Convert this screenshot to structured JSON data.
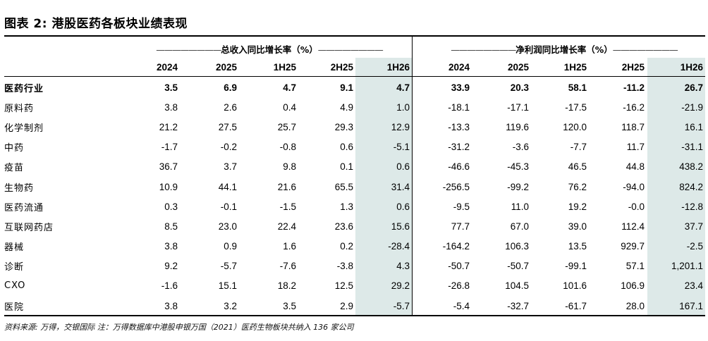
{
  "title": "图表 2: 港股医药各板块业绩表现",
  "colors": {
    "shade": "#dde9e8"
  },
  "groups": {
    "revenue": {
      "label": "总收入同比增长率（%）",
      "dashes": "————————"
    },
    "profit": {
      "label": "净利润同比增长率（%）",
      "dashes": "————————"
    }
  },
  "columns": {
    "revenue": [
      "2024",
      "2025",
      "1H25",
      "2H25",
      "1H26"
    ],
    "profit": [
      "2024",
      "2025",
      "1H25",
      "2H25",
      "1H26"
    ]
  },
  "rows": [
    {
      "name": "医药行业",
      "bold": true,
      "values": [
        "3.5",
        "6.9",
        "4.7",
        "9.1",
        "4.7",
        "33.9",
        "20.3",
        "58.1",
        "-11.2",
        "26.7"
      ]
    },
    {
      "name": "原料药",
      "bold": false,
      "values": [
        "3.8",
        "2.6",
        "0.4",
        "4.9",
        "1.0",
        "-18.1",
        "-17.1",
        "-17.5",
        "-16.2",
        "-21.9"
      ]
    },
    {
      "name": "化学制剂",
      "bold": false,
      "values": [
        "21.2",
        "27.5",
        "25.7",
        "29.3",
        "12.9",
        "-13.3",
        "119.6",
        "120.0",
        "118.7",
        "16.1"
      ]
    },
    {
      "name": "中药",
      "bold": false,
      "values": [
        "-1.7",
        "-0.2",
        "-0.8",
        "0.6",
        "-5.1",
        "-31.2",
        "-3.6",
        "-7.7",
        "11.7",
        "-31.1"
      ]
    },
    {
      "name": "疫苗",
      "bold": false,
      "values": [
        "36.7",
        "3.7",
        "9.8",
        "0.1",
        "0.6",
        "-46.6",
        "-45.3",
        "46.5",
        "44.8",
        "438.2"
      ]
    },
    {
      "name": "生物药",
      "bold": false,
      "values": [
        "10.9",
        "44.1",
        "21.6",
        "65.5",
        "31.4",
        "-256.5",
        "-99.2",
        "76.2",
        "-94.0",
        "824.2"
      ]
    },
    {
      "name": "医药流通",
      "bold": false,
      "values": [
        "0.3",
        "-0.1",
        "-1.5",
        "1.3",
        "0.6",
        "-9.5",
        "11.0",
        "19.2",
        "-0.0",
        "-12.8"
      ]
    },
    {
      "name": "互联网药店",
      "bold": false,
      "values": [
        "8.5",
        "23.0",
        "22.4",
        "23.6",
        "15.6",
        "77.7",
        "67.0",
        "39.0",
        "112.4",
        "37.7"
      ]
    },
    {
      "name": "器械",
      "bold": false,
      "values": [
        "3.8",
        "0.9",
        "1.6",
        "0.2",
        "-28.4",
        "-164.2",
        "106.3",
        "13.5",
        "929.7",
        "-2.5"
      ]
    },
    {
      "name": "诊断",
      "bold": false,
      "values": [
        "9.2",
        "-5.7",
        "-7.6",
        "-3.8",
        "4.3",
        "-50.7",
        "-50.7",
        "-99.1",
        "57.1",
        "1,201.1"
      ]
    },
    {
      "name": "CXO",
      "bold": false,
      "values": [
        "-1.6",
        "15.1",
        "18.2",
        "12.5",
        "29.2",
        "-26.8",
        "104.5",
        "101.6",
        "106.9",
        "23.4"
      ]
    },
    {
      "name": "医院",
      "bold": false,
      "values": [
        "3.8",
        "3.2",
        "3.5",
        "2.9",
        "-5.7",
        "-5.4",
        "-32.7",
        "-61.7",
        "28.0",
        "167.1"
      ]
    }
  ],
  "note": "资料来源: 万得，交银国际  注：万得数据库中港股申银万国（2021）医药生物板块共纳入 136 家公司"
}
